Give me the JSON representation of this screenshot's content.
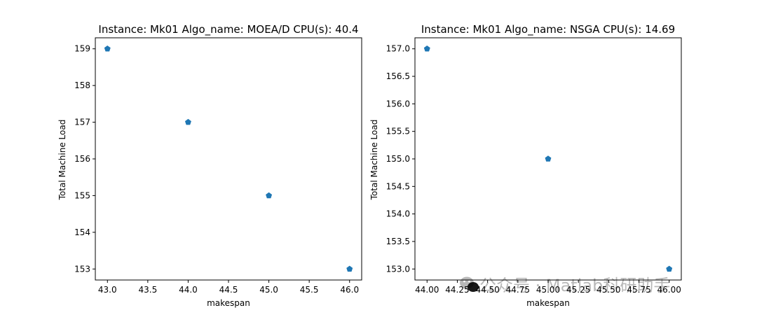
{
  "chart_data": [
    {
      "type": "scatter",
      "title": "Instance: Mk01 Algo_name: MOEA/D CPU(s): 40.4",
      "xlabel": "makespan",
      "ylabel": "Total Machine Load",
      "xlim": [
        42.85,
        46.15
      ],
      "ylim": [
        152.7,
        159.3
      ],
      "x_ticks": [
        43.0,
        43.5,
        44.0,
        44.5,
        45.0,
        45.5,
        46.0
      ],
      "x_tick_labels": [
        "43.0",
        "43.5",
        "44.0",
        "44.5",
        "45.0",
        "45.5",
        "46.0"
      ],
      "y_ticks": [
        153,
        154,
        155,
        156,
        157,
        158,
        159
      ],
      "y_tick_labels": [
        "153",
        "154",
        "155",
        "156",
        "157",
        "158",
        "159"
      ],
      "marker": "pentagon",
      "marker_color": "#1f77b4",
      "grid": false,
      "points": [
        {
          "x": 43,
          "y": 159
        },
        {
          "x": 44,
          "y": 157
        },
        {
          "x": 45,
          "y": 155
        },
        {
          "x": 46,
          "y": 153
        }
      ]
    },
    {
      "type": "scatter",
      "title": "Instance: Mk01 Algo_name: NSGA CPU(s): 14.69",
      "xlabel": "makespan",
      "ylabel": "Total Machine Load",
      "xlim": [
        43.9,
        46.1
      ],
      "ylim": [
        152.8,
        157.2
      ],
      "x_ticks": [
        44.0,
        44.25,
        44.5,
        44.75,
        45.0,
        45.25,
        45.5,
        45.75,
        46.0
      ],
      "x_tick_labels": [
        "44.00",
        "44.25",
        "44.50",
        "44.75",
        "45.00",
        "45.25",
        "45.50",
        "45.75",
        "46.00"
      ],
      "y_ticks": [
        153.0,
        153.5,
        154.0,
        154.5,
        155.0,
        155.5,
        156.0,
        156.5,
        157.0
      ],
      "y_tick_labels": [
        "153.0",
        "153.5",
        "154.0",
        "154.5",
        "155.0",
        "155.5",
        "156.0",
        "156.5",
        "157.0"
      ],
      "marker": "pentagon",
      "marker_color": "#1f77b4",
      "grid": false,
      "points": [
        {
          "x": 44,
          "y": 157
        },
        {
          "x": 45,
          "y": 155
        },
        {
          "x": 46,
          "y": 153
        }
      ]
    }
  ],
  "watermark": {
    "text": "公众号 · Matlab科研助手",
    "icon": "wechat-icon"
  }
}
